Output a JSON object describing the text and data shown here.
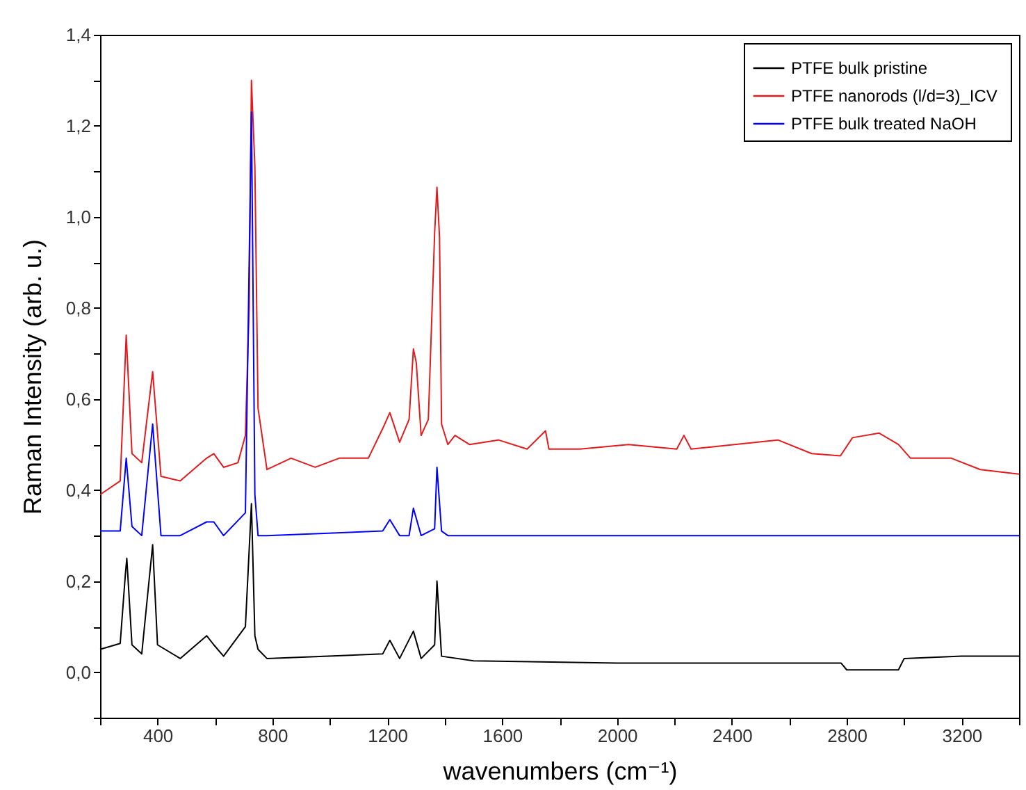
{
  "chart_data": {
    "type": "line",
    "xlabel": "wavenumbers (cm⁻¹)",
    "ylabel": "Raman Intensity (arb. u.)",
    "xlim": [
      200,
      3400
    ],
    "ylim": [
      -0.1,
      1.4
    ],
    "xticks": [
      {
        "value": 200,
        "label": null
      },
      400,
      {
        "value": 600,
        "label": null
      },
      800,
      {
        "value": 1000,
        "label": null
      },
      1200,
      {
        "value": 1400,
        "label": null
      },
      1600,
      {
        "value": 1800,
        "label": null
      },
      2000,
      {
        "value": 2200,
        "label": null
      },
      2400,
      {
        "value": 2600,
        "label": null
      },
      2800,
      {
        "value": 3000,
        "label": null
      },
      3200,
      {
        "value": 3400,
        "label": null
      }
    ],
    "yticks": [
      {
        "value": -0.1,
        "label": null
      },
      {
        "value": 0,
        "label": "0,0"
      },
      {
        "value": 0.1,
        "label": null
      },
      {
        "value": 0.2,
        "label": "0,2"
      },
      {
        "value": 0.3,
        "label": null
      },
      {
        "value": 0.4,
        "label": "0,4"
      },
      {
        "value": 0.5,
        "label": null
      },
      {
        "value": 0.6,
        "label": "0,6"
      },
      {
        "value": 0.7,
        "label": null
      },
      {
        "value": 0.8,
        "label": "0,8"
      },
      {
        "value": 0.9,
        "label": null
      },
      {
        "value": 1.0,
        "label": "1,0"
      },
      {
        "value": 1.1,
        "label": null
      },
      {
        "value": 1.2,
        "label": "1,2"
      },
      {
        "value": 1.3,
        "label": null
      },
      {
        "value": 1.4,
        "label": "1,4"
      }
    ],
    "grid": false,
    "legend": "top right",
    "series": [
      {
        "name": "PTFE  bulk pristine",
        "color": "#000000",
        "x": [
          200,
          270,
          288,
          293,
          311,
          345,
          383,
          400,
          479,
          571,
          596,
          630,
          706,
          727,
          739,
          750,
          781,
          1184,
          1209,
          1243,
          1291,
          1318,
          1365,
          1373,
          1389,
          1500,
          2000,
          2500,
          2780,
          2800,
          2980,
          3000,
          3200,
          3400
        ],
        "values": [
          0.05,
          0.063,
          0.215,
          0.25,
          0.06,
          0.04,
          0.28,
          0.06,
          0.03,
          0.08,
          0.06,
          0.035,
          0.1,
          0.37,
          0.08,
          0.05,
          0.03,
          0.04,
          0.07,
          0.03,
          0.09,
          0.03,
          0.06,
          0.2,
          0.035,
          0.025,
          0.02,
          0.02,
          0.02,
          0.005,
          0.005,
          0.03,
          0.035,
          0.035
        ]
      },
      {
        "name": "PTFE  nanorods (l/d=3)_ICV",
        "color": "#e41a1c",
        "x": [
          200,
          270,
          291,
          311,
          345,
          383,
          412,
          479,
          571,
          596,
          630,
          680,
          706,
          719,
          727,
          739,
          750,
          781,
          865,
          949,
          1033,
          1134,
          1184,
          1209,
          1243,
          1276,
          1291,
          1301,
          1318,
          1343,
          1365,
          1373,
          1382,
          1389,
          1411,
          1436,
          1486,
          1587,
          1687,
          1751,
          1763,
          1871,
          2040,
          2208,
          2233,
          2258,
          2409,
          2560,
          2678,
          2778,
          2820,
          2913,
          2980,
          3022,
          3164,
          3265,
          3400
        ],
        "values": [
          0.39,
          0.42,
          0.74,
          0.48,
          0.46,
          0.66,
          0.43,
          0.42,
          0.47,
          0.48,
          0.45,
          0.46,
          0.52,
          0.8,
          1.3,
          1.11,
          0.58,
          0.445,
          0.47,
          0.45,
          0.47,
          0.47,
          0.535,
          0.57,
          0.505,
          0.555,
          0.71,
          0.68,
          0.52,
          0.555,
          0.965,
          1.065,
          0.955,
          0.545,
          0.5,
          0.52,
          0.5,
          0.51,
          0.49,
          0.53,
          0.49,
          0.49,
          0.5,
          0.49,
          0.52,
          0.49,
          0.5,
          0.51,
          0.48,
          0.475,
          0.515,
          0.525,
          0.5,
          0.47,
          0.47,
          0.445,
          0.435
        ]
      },
      {
        "name": "PTFE  bulk treated NaOH",
        "color": "#0000ff",
        "x": [
          200,
          270,
          291,
          311,
          345,
          383,
          412,
          479,
          571,
          596,
          630,
          706,
          727,
          739,
          750,
          781,
          1184,
          1209,
          1243,
          1276,
          1291,
          1318,
          1365,
          1373,
          1389,
          1411,
          3400
        ],
        "values": [
          0.31,
          0.31,
          0.47,
          0.32,
          0.3,
          0.545,
          0.3,
          0.3,
          0.33,
          0.33,
          0.3,
          0.35,
          1.23,
          0.39,
          0.3,
          0.3,
          0.31,
          0.335,
          0.3,
          0.3,
          0.36,
          0.3,
          0.315,
          0.45,
          0.31,
          0.3,
          0.3
        ]
      }
    ]
  }
}
